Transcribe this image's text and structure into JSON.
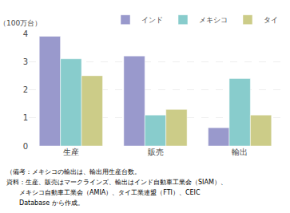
{
  "chart_data": {
    "type": "bar",
    "categories": [
      "生産",
      "販売",
      "輸出"
    ],
    "series": [
      {
        "name": "インド",
        "color": "#9999cc",
        "values": [
          3.9,
          3.2,
          0.65
        ]
      },
      {
        "name": "メキシコ",
        "color": "#88cccc",
        "values": [
          3.1,
          1.1,
          2.4
        ]
      },
      {
        "name": "タイ",
        "color": "#cccc88",
        "values": [
          2.5,
          1.3,
          1.1
        ]
      }
    ],
    "ylabel": "（100万台）",
    "ylim": [
      0,
      4.0
    ],
    "yticks": [
      0,
      1,
      2,
      3,
      4
    ],
    "grid": true,
    "legend": "upper right",
    "annotations": [
      "（備考：メキシコの輸出は、輸出用生産台数。",
      "資料：生産、販売はマークラインズ、輸出はインド自動車工業会（SIAM）、",
      "　　メキシコ自動車工業会（AMIA）、タイ工業連盟（FTI）、CEIC",
      "　　Database から作成。"
    ]
  }
}
